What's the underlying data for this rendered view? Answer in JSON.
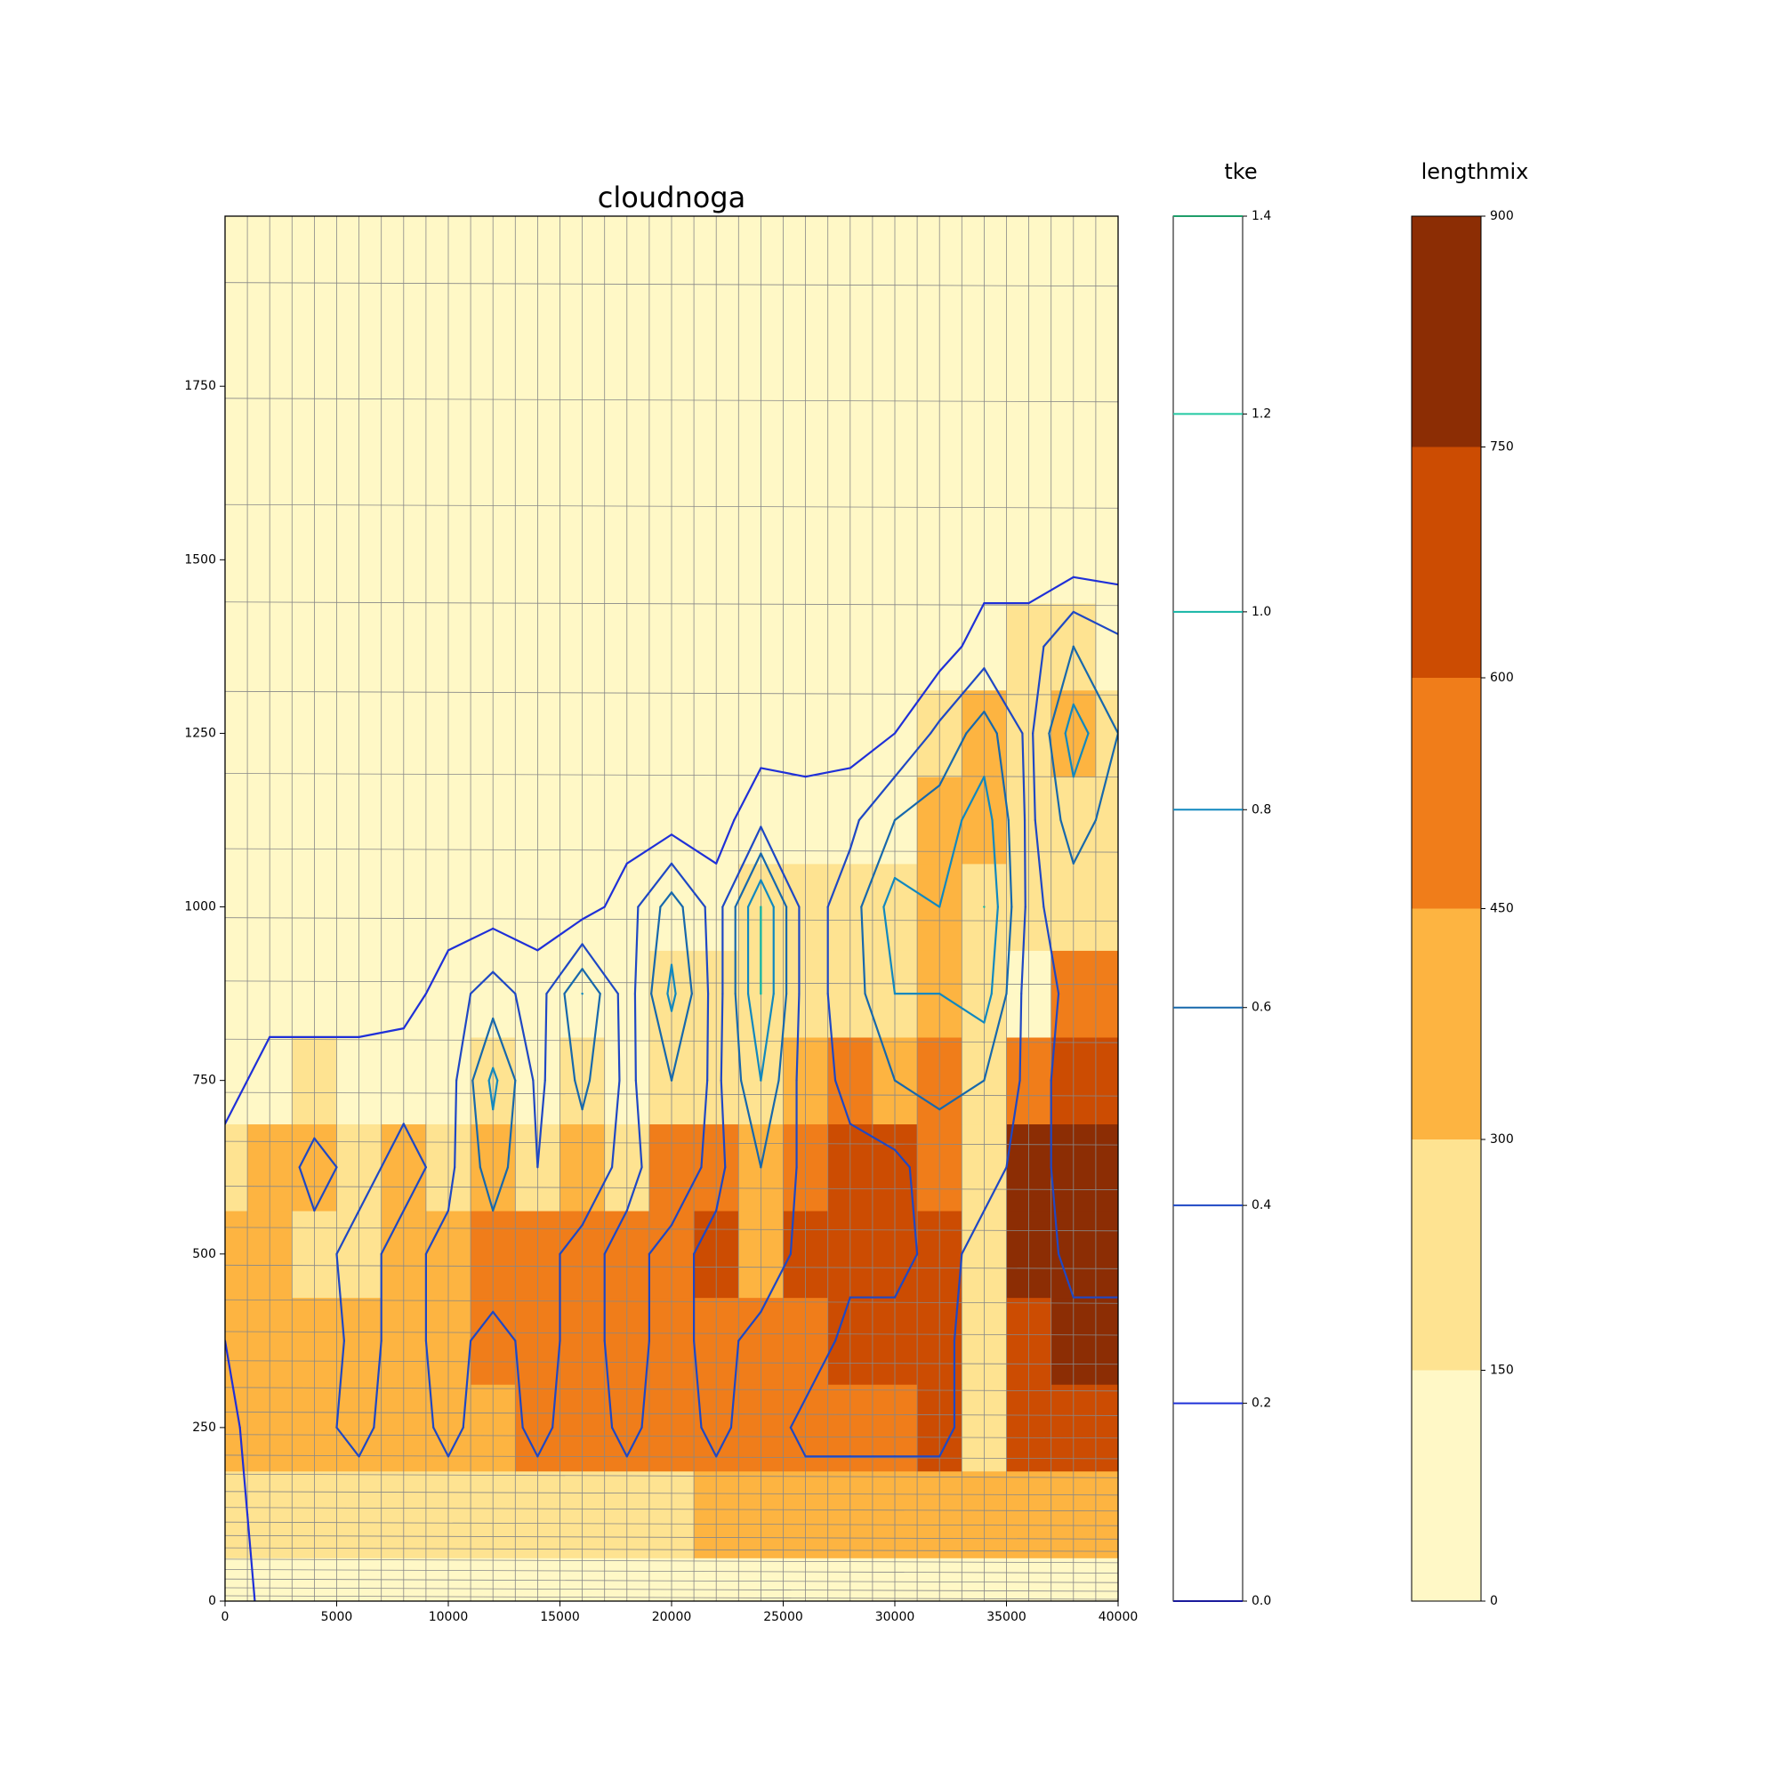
{
  "chart_data": {
    "type": "contour",
    "title": "cloudnoga",
    "xlim": [
      0,
      40000
    ],
    "xticks": [
      0,
      5000,
      10000,
      15000,
      20000,
      25000,
      30000,
      35000,
      40000
    ],
    "ylim": [
      0,
      1995
    ],
    "yticks": [
      0,
      250,
      500,
      750,
      1000,
      1250,
      1500,
      1750
    ],
    "x": [
      0,
      2000,
      4000,
      6000,
      8000,
      10000,
      12000,
      14000,
      16000,
      18000,
      20000,
      22000,
      24000,
      26000,
      28000,
      30000,
      32000,
      34000,
      36000,
      38000,
      40000
    ],
    "y": [
      0,
      125,
      250,
      375,
      500,
      625,
      750,
      875,
      1000,
      1125,
      1250,
      1375,
      1500,
      1625,
      1750,
      1875
    ],
    "series": [
      {
        "name": "lengthmix",
        "kind": "filled",
        "levels": [
          0,
          150,
          300,
          450,
          600,
          750,
          900
        ],
        "colors": [
          "#fff8c6",
          "#fee391",
          "#fdb441",
          "#f07d1a",
          "#cc4c02",
          "#8c2d04"
        ],
        "values": [
          [
            100,
            100,
            100,
            100,
            100,
            100,
            100,
            100,
            100,
            100,
            100,
            100,
            100,
            100,
            100,
            100,
            100,
            100,
            100,
            100,
            100
          ],
          [
            250,
            250,
            250,
            250,
            250,
            250,
            250,
            250,
            250,
            250,
            250,
            350,
            350,
            350,
            350,
            350,
            350,
            350,
            350,
            350,
            350
          ],
          [
            380,
            380,
            380,
            380,
            380,
            380,
            380,
            500,
            500,
            500,
            500,
            500,
            500,
            500,
            500,
            500,
            650,
            250,
            650,
            650,
            650
          ],
          [
            380,
            380,
            380,
            380,
            380,
            380,
            500,
            500,
            500,
            500,
            500,
            500,
            500,
            500,
            650,
            650,
            650,
            250,
            650,
            800,
            800
          ],
          [
            380,
            380,
            200,
            200,
            380,
            380,
            500,
            500,
            500,
            500,
            500,
            650,
            380,
            650,
            650,
            650,
            650,
            250,
            800,
            800,
            800
          ],
          [
            250,
            380,
            380,
            250,
            380,
            200,
            380,
            250,
            380,
            200,
            500,
            500,
            380,
            500,
            650,
            650,
            500,
            250,
            800,
            800,
            800
          ],
          [
            100,
            100,
            200,
            100,
            100,
            100,
            250,
            100,
            200,
            100,
            200,
            250,
            200,
            380,
            500,
            380,
            500,
            200,
            500,
            650,
            650
          ],
          [
            100,
            100,
            100,
            100,
            100,
            100,
            100,
            100,
            100,
            100,
            200,
            200,
            250,
            200,
            250,
            200,
            380,
            250,
            100,
            500,
            500
          ],
          [
            100,
            100,
            100,
            100,
            100,
            100,
            100,
            100,
            100,
            100,
            100,
            100,
            250,
            200,
            250,
            250,
            380,
            250,
            200,
            200,
            200
          ],
          [
            100,
            100,
            100,
            100,
            100,
            100,
            100,
            100,
            100,
            100,
            100,
            100,
            100,
            100,
            100,
            100,
            380,
            380,
            250,
            250,
            200
          ],
          [
            100,
            100,
            100,
            100,
            100,
            100,
            100,
            100,
            100,
            100,
            100,
            100,
            100,
            100,
            100,
            100,
            250,
            380,
            250,
            380,
            250
          ],
          [
            100,
            100,
            100,
            100,
            100,
            100,
            100,
            100,
            100,
            100,
            100,
            100,
            100,
            100,
            100,
            100,
            100,
            100,
            200,
            200,
            100
          ],
          [
            100,
            100,
            100,
            100,
            100,
            100,
            100,
            100,
            100,
            100,
            100,
            100,
            100,
            100,
            100,
            100,
            100,
            100,
            100,
            100,
            100
          ],
          [
            100,
            100,
            100,
            100,
            100,
            100,
            100,
            100,
            100,
            100,
            100,
            100,
            100,
            100,
            100,
            100,
            100,
            100,
            100,
            100,
            100
          ],
          [
            100,
            100,
            100,
            100,
            100,
            100,
            100,
            100,
            100,
            100,
            100,
            100,
            100,
            100,
            100,
            100,
            100,
            100,
            100,
            100,
            100
          ],
          [
            100,
            100,
            100,
            100,
            100,
            100,
            100,
            100,
            100,
            100,
            100,
            100,
            100,
            100,
            100,
            100,
            100,
            100,
            100,
            100,
            100
          ]
        ]
      },
      {
        "name": "tke",
        "kind": "lines",
        "levels": [
          {
            "value": 0,
            "label": "0.0"
          },
          0.2,
          0.4,
          0.6,
          0.8,
          {
            "value": 1,
            "label": "1.0"
          },
          1.2,
          1.4
        ],
        "colors": [
          "#1a1a9c",
          "#1f30d8",
          "#1f48c4",
          "#1768ac",
          "#1188bf",
          "#14b5a5",
          "#22c9a2",
          "#1f9e6a"
        ],
        "values": [
          [
            0.1,
            0.25,
            0.25,
            0.25,
            0.25,
            0.25,
            0.25,
            0.25,
            0.25,
            0.25,
            0.25,
            0.25,
            0.25,
            0.25,
            0.25,
            0.25,
            0.25,
            0.25,
            0.25,
            0.25,
            0.25
          ],
          [
            0.1,
            0.3,
            0.3,
            0.3,
            0.3,
            0.3,
            0.3,
            0.3,
            0.3,
            0.3,
            0.3,
            0.3,
            0.3,
            0.3,
            0.3,
            0.3,
            0.3,
            0.3,
            0.3,
            0.3,
            0.3
          ],
          [
            0.15,
            0.3,
            0.35,
            0.45,
            0.3,
            0.45,
            0.3,
            0.45,
            0.3,
            0.45,
            0.3,
            0.45,
            0.3,
            0.45,
            0.45,
            0.45,
            0.45,
            0.3,
            0.3,
            0.3,
            0.35
          ],
          [
            0.2,
            0.35,
            0.3,
            0.45,
            0.35,
            0.45,
            0.35,
            0.45,
            0.35,
            0.45,
            0.35,
            0.45,
            0.35,
            0.3,
            0.45,
            0.45,
            0.45,
            0.3,
            0.3,
            0.35,
            0.35
          ],
          [
            0.25,
            0.35,
            0.35,
            0.45,
            0.35,
            0.45,
            0.5,
            0.45,
            0.35,
            0.45,
            0.35,
            0.45,
            0.5,
            0.35,
            0.35,
            0.35,
            0.45,
            0.35,
            0.3,
            0.45,
            0.45
          ],
          [
            0.3,
            0.3,
            0.45,
            0.35,
            0.45,
            0.35,
            0.7,
            0.4,
            0.5,
            0.35,
            0.5,
            0.35,
            0.6,
            0.35,
            0.35,
            0.35,
            0.5,
            0.45,
            0.35,
            0.45,
            0.45
          ],
          [
            0.1,
            0.3,
            0.3,
            0.3,
            0.35,
            0.3,
            0.85,
            0.35,
            0.65,
            0.35,
            0.6,
            0.35,
            0.8,
            0.3,
            0.45,
            0.6,
            0.65,
            0.6,
            0.35,
            0.45,
            0.45
          ],
          [
            0.1,
            0.1,
            0.1,
            0.1,
            0.1,
            0.3,
            0.5,
            0.3,
            0.8,
            0.3,
            0.85,
            0.3,
            1.0,
            0.3,
            0.5,
            0.8,
            0.8,
            0.9,
            0.3,
            0.45,
            0.45
          ],
          [
            0.1,
            0.1,
            0.1,
            0.1,
            0.1,
            0.1,
            0.1,
            0.1,
            0.1,
            0.3,
            0.7,
            0.3,
            1.0,
            0.3,
            0.5,
            0.9,
            0.8,
            1.0,
            0.35,
            0.5,
            0.5
          ],
          [
            0.1,
            0.1,
            0.1,
            0.1,
            0.1,
            0.1,
            0.1,
            0.1,
            0.1,
            0.1,
            0.1,
            0.1,
            0.35,
            0.3,
            0.35,
            0.6,
            0.7,
            0.9,
            0.35,
            0.7,
            0.5
          ],
          [
            0.1,
            0.1,
            0.1,
            0.1,
            0.1,
            0.1,
            0.1,
            0.1,
            0.1,
            0.1,
            0.1,
            0.1,
            0.1,
            0.1,
            0.1,
            0.2,
            0.45,
            0.7,
            0.35,
            0.9,
            0.6
          ],
          [
            0.1,
            0.1,
            0.1,
            0.1,
            0.1,
            0.1,
            0.1,
            0.1,
            0.1,
            0.1,
            0.1,
            0.1,
            0.1,
            0.1,
            0.1,
            0.1,
            0.1,
            0.3,
            0.3,
            0.6,
            0.45
          ],
          [
            0.1,
            0.1,
            0.1,
            0.1,
            0.1,
            0.1,
            0.1,
            0.1,
            0.1,
            0.1,
            0.1,
            0.1,
            0.1,
            0.1,
            0.1,
            0.1,
            0.1,
            0.1,
            0.1,
            0.1,
            0.1
          ],
          [
            0.1,
            0.1,
            0.1,
            0.1,
            0.1,
            0.1,
            0.1,
            0.1,
            0.1,
            0.1,
            0.1,
            0.1,
            0.1,
            0.1,
            0.1,
            0.1,
            0.1,
            0.1,
            0.1,
            0.1,
            0.1
          ],
          [
            0.1,
            0.1,
            0.1,
            0.1,
            0.1,
            0.1,
            0.1,
            0.1,
            0.1,
            0.1,
            0.1,
            0.1,
            0.1,
            0.1,
            0.1,
            0.1,
            0.1,
            0.1,
            0.1,
            0.1,
            0.1
          ],
          [
            0.1,
            0.1,
            0.1,
            0.1,
            0.1,
            0.1,
            0.1,
            0.1,
            0.1,
            0.1,
            0.1,
            0.1,
            0.1,
            0.1,
            0.1,
            0.1,
            0.1,
            0.1,
            0.1,
            0.1,
            0.1
          ]
        ]
      }
    ]
  }
}
